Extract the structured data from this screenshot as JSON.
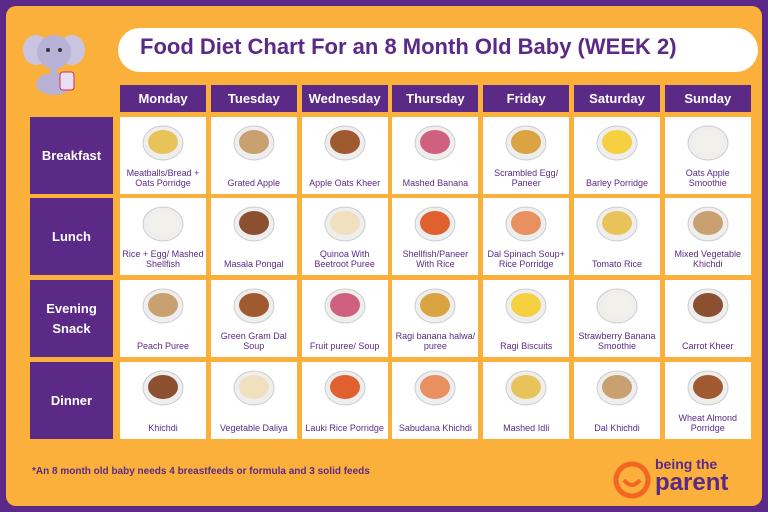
{
  "header": {
    "title": "Food Diet Chart For an 8 Month Old Baby (WEEK 2)"
  },
  "table": {
    "columns": [
      "Monday",
      "Tuesday",
      "Wednesday",
      "Thursday",
      "Friday",
      "Saturday",
      "Sunday"
    ],
    "rows": [
      {
        "label": "Breakfast",
        "cells": [
          "Meatballs/Bread + Oats Porridge",
          "Grated Apple",
          "Apple Oats Kheer",
          "Mashed Banana",
          "Scrambled Egg/ Paneer",
          "Barley Porridge",
          "Oats Apple Smoothie"
        ]
      },
      {
        "label": "Lunch",
        "cells": [
          "Rice + Egg/ Mashed Shellfish",
          "Masala Pongal",
          "Quinoa With Beetroot Puree",
          "Shellfish/Paneer With Rice",
          "Dal Spinach Soup+ Rice Porridge",
          "Tomato Rice",
          "Mixed Vegetable Khichdi"
        ]
      },
      {
        "label": "Evening Snack",
        "cells": [
          "Peach Puree",
          "Green Gram Dal Soup",
          "Fruit puree/ Soup",
          "Ragi banana halwa/ puree",
          "Ragi Biscuits",
          "Strawberry Banana Smoothie",
          "Carrot Kheer"
        ]
      },
      {
        "label": "Dinner",
        "cells": [
          "Khichdi",
          "Vegetable Daliya",
          "Lauki Rice Porridge",
          "Sabudana Khichdi",
          "Mashed Idli",
          "Dal Khichdi",
          "Wheat Almond Porridge"
        ]
      }
    ]
  },
  "footnote": "*An 8 month old baby needs 4 breastfeeds or formula and 3 solid feeds",
  "logo": {
    "top": "being the",
    "bottom": "parent"
  }
}
